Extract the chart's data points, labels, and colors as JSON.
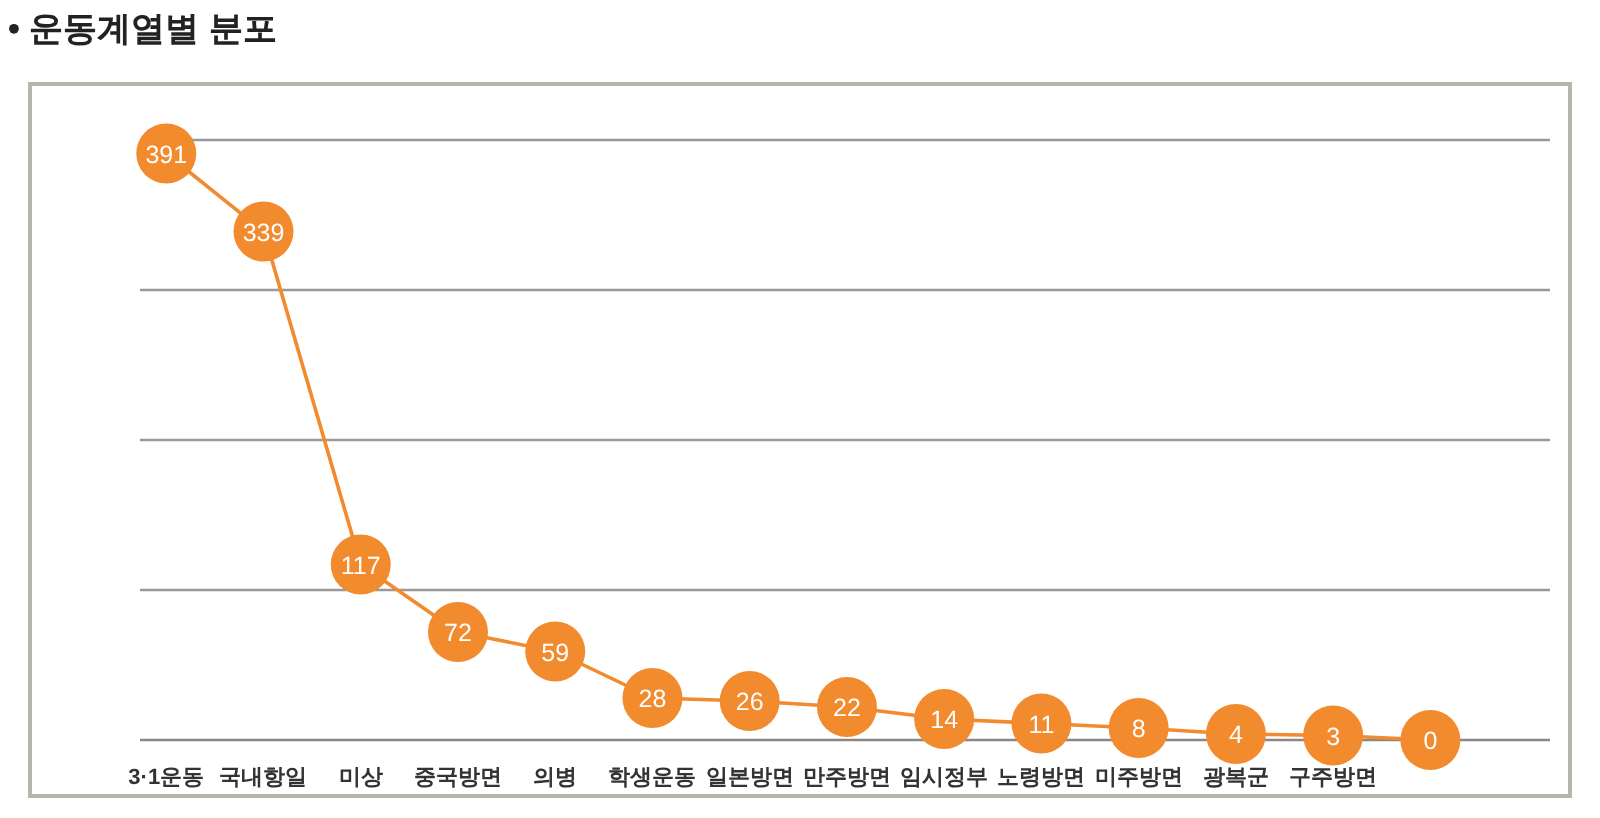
{
  "chart_data": {
    "type": "line",
    "title": "• 운동계열별 분포",
    "categories": [
      "3·1운동",
      "국내항일",
      "미상",
      "중국방면",
      "의병",
      "학생운동",
      "일본방면",
      "만주방면",
      "임시정부",
      "노령방면",
      "미주방면",
      "광복군",
      "구주방면",
      null
    ],
    "series": [
      {
        "color": "#f28a2e",
        "values": [
          391,
          339,
          117,
          72,
          59,
          28,
          26,
          22,
          14,
          11,
          8,
          4,
          3,
          0
        ]
      }
    ],
    "ylim": [
      0,
      400
    ],
    "yticks": [
      {
        "value": 0,
        "label": null
      },
      {
        "value": 100,
        "label": null
      },
      {
        "value": 200,
        "label": null
      },
      {
        "value": 300,
        "label": null
      },
      {
        "value": 400,
        "label": null
      }
    ],
    "tick_labels": "x",
    "grid": "y",
    "marker": "circle",
    "data_labels": true
  }
}
